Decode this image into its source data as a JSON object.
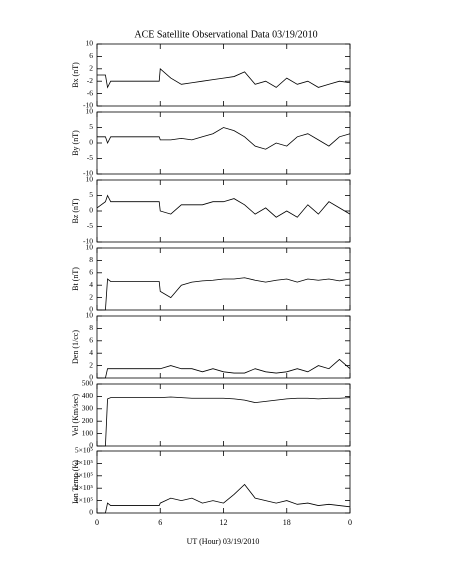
{
  "title": "ACE Satellite Observational Data   03/19/2010",
  "xlabel": "UT (Hour)   03/19/2010",
  "chart_data": [
    {
      "type": "line",
      "ylabel": "Bx (nT)",
      "color": "#000000",
      "xlim": [
        0,
        24
      ],
      "ylim": [
        -10,
        10
      ],
      "yticks": [
        10,
        6,
        2,
        -2,
        -6,
        -10
      ],
      "x": [
        0,
        0.8,
        1,
        1.3,
        5.9,
        6,
        7,
        8,
        9,
        10,
        11,
        12,
        13,
        14,
        15,
        16,
        17,
        18,
        19,
        20,
        21,
        22,
        23,
        24
      ],
      "values": [
        0,
        0,
        -4,
        -2,
        -2,
        2,
        -1,
        -3,
        -2.5,
        -2,
        -1.5,
        -1,
        -0.5,
        1,
        -3,
        -2,
        -4,
        -1,
        -3,
        -2,
        -4,
        -3,
        -2,
        -2.5
      ]
    },
    {
      "type": "line",
      "ylabel": "By (nT)",
      "color": "#000000",
      "xlim": [
        0,
        24
      ],
      "ylim": [
        -10,
        10
      ],
      "yticks": [
        10,
        5,
        0,
        -5,
        -10
      ],
      "x": [
        0,
        0.8,
        1,
        1.3,
        5.9,
        6,
        7,
        8,
        9,
        10,
        11,
        12,
        13,
        14,
        15,
        16,
        17,
        18,
        19,
        20,
        21,
        22,
        23,
        24
      ],
      "values": [
        2,
        2,
        0,
        2,
        2,
        1,
        1,
        1.5,
        1,
        2,
        3,
        5,
        4,
        2,
        -1,
        -2,
        0,
        -1,
        2,
        3,
        1,
        -1,
        2,
        3
      ]
    },
    {
      "type": "line",
      "ylabel": "Bz (nT)",
      "color": "#000000",
      "xlim": [
        0,
        24
      ],
      "ylim": [
        -10,
        10
      ],
      "yticks": [
        10,
        5,
        0,
        -5,
        -10
      ],
      "x": [
        0,
        0.8,
        1,
        1.3,
        5.9,
        6,
        7,
        8,
        9,
        10,
        11,
        12,
        13,
        14,
        15,
        16,
        17,
        18,
        19,
        20,
        21,
        22,
        23,
        24
      ],
      "values": [
        1,
        3,
        5,
        3,
        3,
        0,
        -1,
        2,
        2,
        2,
        3,
        3,
        4,
        2,
        -1,
        1,
        -2,
        0,
        -2,
        2,
        -1,
        3,
        1,
        -1
      ]
    },
    {
      "type": "line",
      "ylabel": "Bt (nT)",
      "color": "#000000",
      "xlim": [
        0,
        24
      ],
      "ylim": [
        0,
        10
      ],
      "yticks": [
        10,
        8,
        6,
        4,
        2,
        0
      ],
      "x": [
        0,
        0.8,
        1,
        1.3,
        5.9,
        6,
        7,
        8,
        9,
        10,
        11,
        12,
        13,
        14,
        15,
        16,
        17,
        18,
        19,
        20,
        21,
        22,
        23,
        24
      ],
      "values": [
        0,
        0,
        5,
        4.6,
        4.6,
        3,
        2,
        4,
        4.5,
        4.7,
        4.8,
        5,
        5,
        5.2,
        4.8,
        4.5,
        4.8,
        5,
        4.5,
        5,
        4.8,
        5,
        4.7,
        5
      ]
    },
    {
      "type": "line",
      "ylabel": "Den (1/cc)",
      "color": "#000000",
      "xlim": [
        0,
        24
      ],
      "ylim": [
        0,
        10
      ],
      "yticks": [
        10,
        8,
        6,
        4,
        2,
        0
      ],
      "x": [
        0,
        0.8,
        1,
        1.3,
        5.9,
        6,
        7,
        8,
        9,
        10,
        11,
        12,
        13,
        14,
        15,
        16,
        17,
        18,
        19,
        20,
        21,
        22,
        23,
        24
      ],
      "values": [
        0,
        0,
        1.5,
        1.5,
        1.5,
        1.5,
        2,
        1.5,
        1.5,
        1,
        1.5,
        1,
        0.8,
        0.8,
        1.5,
        1,
        0.8,
        1,
        1.5,
        1,
        2,
        1.5,
        3,
        1.5
      ]
    },
    {
      "type": "line",
      "ylabel": "Vel (Km/sec)",
      "color": "#000000",
      "xlim": [
        0,
        24
      ],
      "ylim": [
        0,
        500
      ],
      "yticks": [
        500,
        400,
        300,
        200,
        100,
        0
      ],
      "x": [
        0,
        0.8,
        1,
        1.3,
        5.9,
        6,
        7,
        8,
        9,
        10,
        11,
        12,
        13,
        14,
        15,
        16,
        17,
        18,
        19,
        20,
        21,
        22,
        23,
        24
      ],
      "values": [
        0,
        0,
        380,
        390,
        390,
        390,
        395,
        390,
        385,
        385,
        385,
        385,
        380,
        370,
        350,
        360,
        370,
        380,
        385,
        385,
        380,
        385,
        385,
        390
      ]
    },
    {
      "type": "line",
      "ylabel": "Ion Temp (K)",
      "color": "#000000",
      "xlim": [
        0,
        24
      ],
      "ylim": [
        0,
        500000
      ],
      "yticks": [
        {
          "value": 500000,
          "label": "5×10⁵"
        },
        {
          "value": 400000,
          "label": "4×10⁵"
        },
        {
          "value": 300000,
          "label": "3×10⁵"
        },
        {
          "value": 200000,
          "label": "2×10⁵"
        },
        {
          "value": 100000,
          "label": "1×10⁵"
        },
        0
      ],
      "xticks": [
        0,
        6,
        12,
        18,
        {
          "value": 24,
          "label": "0"
        }
      ],
      "x": [
        0,
        0.8,
        1,
        1.3,
        5.9,
        6,
        7,
        8,
        9,
        10,
        11,
        12,
        13,
        14,
        15,
        16,
        17,
        18,
        19,
        20,
        21,
        22,
        23,
        24
      ],
      "values": [
        0,
        0,
        80000,
        60000,
        60000,
        80000,
        120000,
        100000,
        120000,
        80000,
        100000,
        80000,
        150000,
        230000,
        120000,
        100000,
        80000,
        100000,
        70000,
        80000,
        60000,
        70000,
        60000,
        50000
      ]
    }
  ]
}
